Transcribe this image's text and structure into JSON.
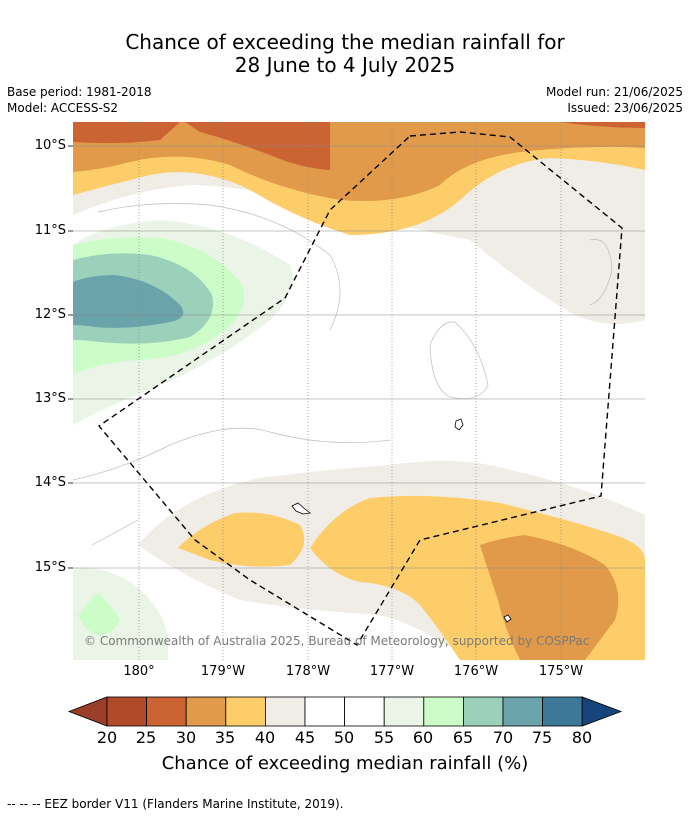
{
  "title": {
    "line1": "Chance of exceeding the median rainfall for",
    "line2": "28 June to 4 July 2025"
  },
  "meta": {
    "base_period": "Base period: 1981-2018",
    "model": "Model: ACCESS-S2",
    "model_run": "Model run: 21/06/2025",
    "issued": "Issued: 23/06/2025"
  },
  "map": {
    "lat_labels": [
      "10°S",
      "11°S",
      "12°S",
      "13°S",
      "14°S",
      "15°S"
    ],
    "lon_labels": [
      "180°",
      "179°W",
      "178°W",
      "177°W",
      "176°W",
      "175°W"
    ],
    "copyright": "© Commonwealth of Australia 2025, Bureau of Meteorology, supported by COSPPac"
  },
  "colorbar": {
    "ticks": [
      "20",
      "25",
      "30",
      "35",
      "40",
      "45",
      "50",
      "55",
      "60",
      "65",
      "70",
      "75",
      "80"
    ],
    "colors": {
      "below_20": "#9b3e28",
      "c20_25": "#b04a29",
      "c25_30": "#cc6333",
      "c30_35": "#e09a4a",
      "c35_40": "#fdcd6a",
      "c40_45": "#f0ece6",
      "c45_55": "#ffffff",
      "c55_60": "#eaf5e8",
      "c60_65": "#ccfcc8",
      "c65_70": "#9bd0bb",
      "c70_75": "#6aa3aa",
      "c75_80": "#3e7898",
      "above_80": "#15457a"
    },
    "label": "Chance of exceeding median rainfall (%)"
  },
  "footnote": "--  --  -- EEZ border V11 (Flanders Marine Institute, 2019)."
}
